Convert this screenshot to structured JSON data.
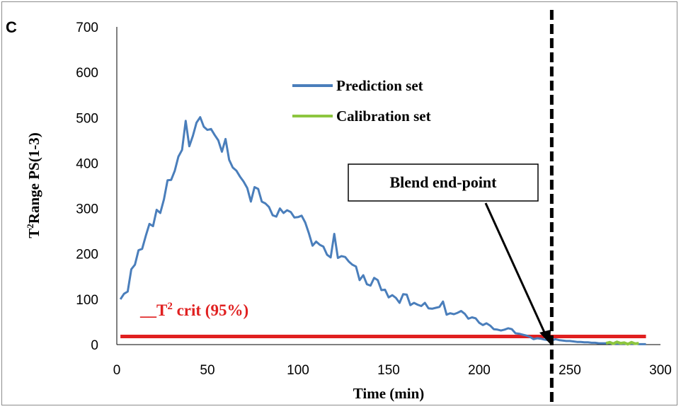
{
  "panel_label": "C",
  "chart_data": {
    "type": "line",
    "title": "",
    "xlabel": "Time (min)",
    "ylabel_main": "T",
    "ylabel_sup": "2",
    "ylabel_rest": "Range PS(1-3)",
    "xlim": [
      0,
      300
    ],
    "ylim": [
      0,
      700
    ],
    "x_ticks": [
      0,
      50,
      100,
      150,
      200,
      250,
      300
    ],
    "y_ticks": [
      0,
      100,
      200,
      300,
      400,
      500,
      600,
      700
    ],
    "grid": false,
    "legend_position": "top-center",
    "colors": {
      "prediction": "#4a7ebb",
      "calibration": "#8dc63f",
      "threshold": "#e02020",
      "endpoint": "#000000"
    },
    "series": [
      {
        "name": "Prediction set",
        "x": [
          2,
          4,
          6,
          8,
          10,
          12,
          14,
          16,
          18,
          20,
          22,
          24,
          26,
          28,
          30,
          32,
          34,
          36,
          38,
          40,
          42,
          44,
          46,
          48,
          50,
          52,
          54,
          56,
          58,
          60,
          62,
          64,
          66,
          68,
          70,
          72,
          74,
          76,
          78,
          80,
          82,
          84,
          86,
          88,
          90,
          92,
          94,
          96,
          98,
          100,
          102,
          104,
          106,
          108,
          110,
          112,
          114,
          116,
          118,
          120,
          122,
          124,
          126,
          128,
          130,
          132,
          134,
          136,
          138,
          140,
          142,
          144,
          146,
          148,
          150,
          152,
          154,
          156,
          158,
          160,
          162,
          164,
          166,
          168,
          170,
          172,
          174,
          176,
          178,
          180,
          182,
          184,
          186,
          188,
          190,
          192,
          194,
          196,
          198,
          200,
          202,
          204,
          206,
          208,
          210,
          212,
          214,
          216,
          218,
          220,
          222,
          224,
          226,
          228,
          230,
          232,
          234,
          236,
          238,
          240,
          242,
          244,
          246,
          248,
          250,
          252,
          254,
          256,
          258,
          260,
          262,
          264,
          266,
          268,
          270,
          272,
          274,
          276,
          278,
          280,
          282,
          284,
          286,
          288,
          290,
          292
        ],
        "y": [
          100,
          112,
          117,
          166,
          176,
          208,
          211,
          240,
          266,
          261,
          297,
          290,
          320,
          362,
          363,
          383,
          414,
          429,
          493,
          437,
          460,
          489,
          501,
          480,
          473,
          475,
          462,
          450,
          425,
          453,
          407,
          390,
          383,
          370,
          359,
          345,
          315,
          347,
          343,
          315,
          311,
          303,
          285,
          282,
          300,
          290,
          296,
          292,
          280,
          281,
          284,
          269,
          245,
          218,
          227,
          220,
          216,
          198,
          192,
          244,
          191,
          195,
          193,
          183,
          176,
          172,
          142,
          153,
          133,
          130,
          147,
          142,
          120,
          121,
          104,
          109,
          103,
          92,
          111,
          110,
          87,
          92,
          88,
          85,
          92,
          80,
          79,
          81,
          83,
          95,
          66,
          69,
          67,
          70,
          74,
          68,
          57,
          60,
          58,
          48,
          43,
          47,
          42,
          34,
          33,
          31,
          33,
          36,
          34,
          25,
          24,
          22,
          20,
          17,
          12,
          14,
          13,
          11,
          10,
          9,
          12,
          10,
          9,
          8,
          8,
          7,
          6,
          6,
          5,
          5,
          4,
          4,
          3,
          3,
          3,
          3,
          2,
          2,
          2,
          2,
          2,
          2,
          2,
          1,
          1,
          1
        ]
      },
      {
        "name": "Calibration set",
        "x": [
          270,
          272,
          274,
          276,
          278,
          280,
          282,
          284,
          286,
          288
        ],
        "y": [
          3,
          5,
          2,
          6,
          3,
          4,
          1,
          5,
          2,
          3
        ]
      }
    ],
    "threshold": {
      "label_prefix": "__",
      "label_main": "T",
      "label_sup": "2",
      "label_rest": " crit (95%)",
      "value": 18
    },
    "endpoint": {
      "label": "Blend end-point",
      "x": 240
    }
  }
}
